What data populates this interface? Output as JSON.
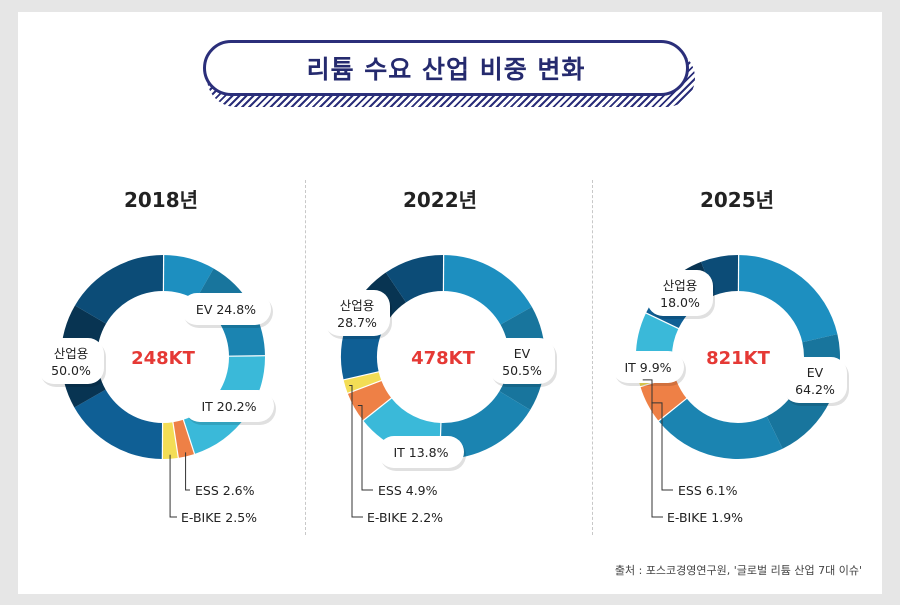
{
  "title": "리튬 수요 산업 비중 변화",
  "source": "출처 : 포스코경영연구원, '글로벌 리튬 산업 7대 이슈'",
  "colors": {
    "EV": "#1d8fc0",
    "IT": "#3ab9d9",
    "E-BIKE": "#f3dd55",
    "ESS": "#ee8046",
    "산업용": "#0f5f95",
    "center_text": "#e53935",
    "callout": "#222222"
  },
  "chart_data": [
    {
      "type": "pie",
      "year": "2018년",
      "total": "248KT",
      "series": [
        {
          "name": "EV",
          "value": 24.8,
          "label": "24.8%"
        },
        {
          "name": "IT",
          "value": 20.2,
          "label": "20.2%"
        },
        {
          "name": "ESS",
          "value": 2.6,
          "label": "2.6%"
        },
        {
          "name": "E-BIKE",
          "value": 2.5,
          "label": "2.5%"
        },
        {
          "name": "산업용",
          "value": 50.0,
          "label": "50.0%"
        }
      ]
    },
    {
      "type": "pie",
      "year": "2022년",
      "total": "478KT",
      "series": [
        {
          "name": "EV",
          "value": 50.5,
          "label": "50.5%"
        },
        {
          "name": "IT",
          "value": 13.8,
          "label": "13.8%"
        },
        {
          "name": "ESS",
          "value": 4.9,
          "label": "4.9%"
        },
        {
          "name": "E-BIKE",
          "value": 2.2,
          "label": "2.2%"
        },
        {
          "name": "산업용",
          "value": 28.7,
          "label": "28.7%"
        }
      ]
    },
    {
      "type": "pie",
      "year": "2025년",
      "total": "821KT",
      "series": [
        {
          "name": "EV",
          "value": 64.2,
          "label": "64.2%"
        },
        {
          "name": "ESS",
          "value": 6.1,
          "label": "6.1%"
        },
        {
          "name": "E-BIKE",
          "value": 1.9,
          "label": "1.9%"
        },
        {
          "name": "IT",
          "value": 9.9,
          "label": "9.9%"
        },
        {
          "name": "산업용",
          "value": 18.0,
          "label": "18.0%"
        }
      ]
    }
  ]
}
